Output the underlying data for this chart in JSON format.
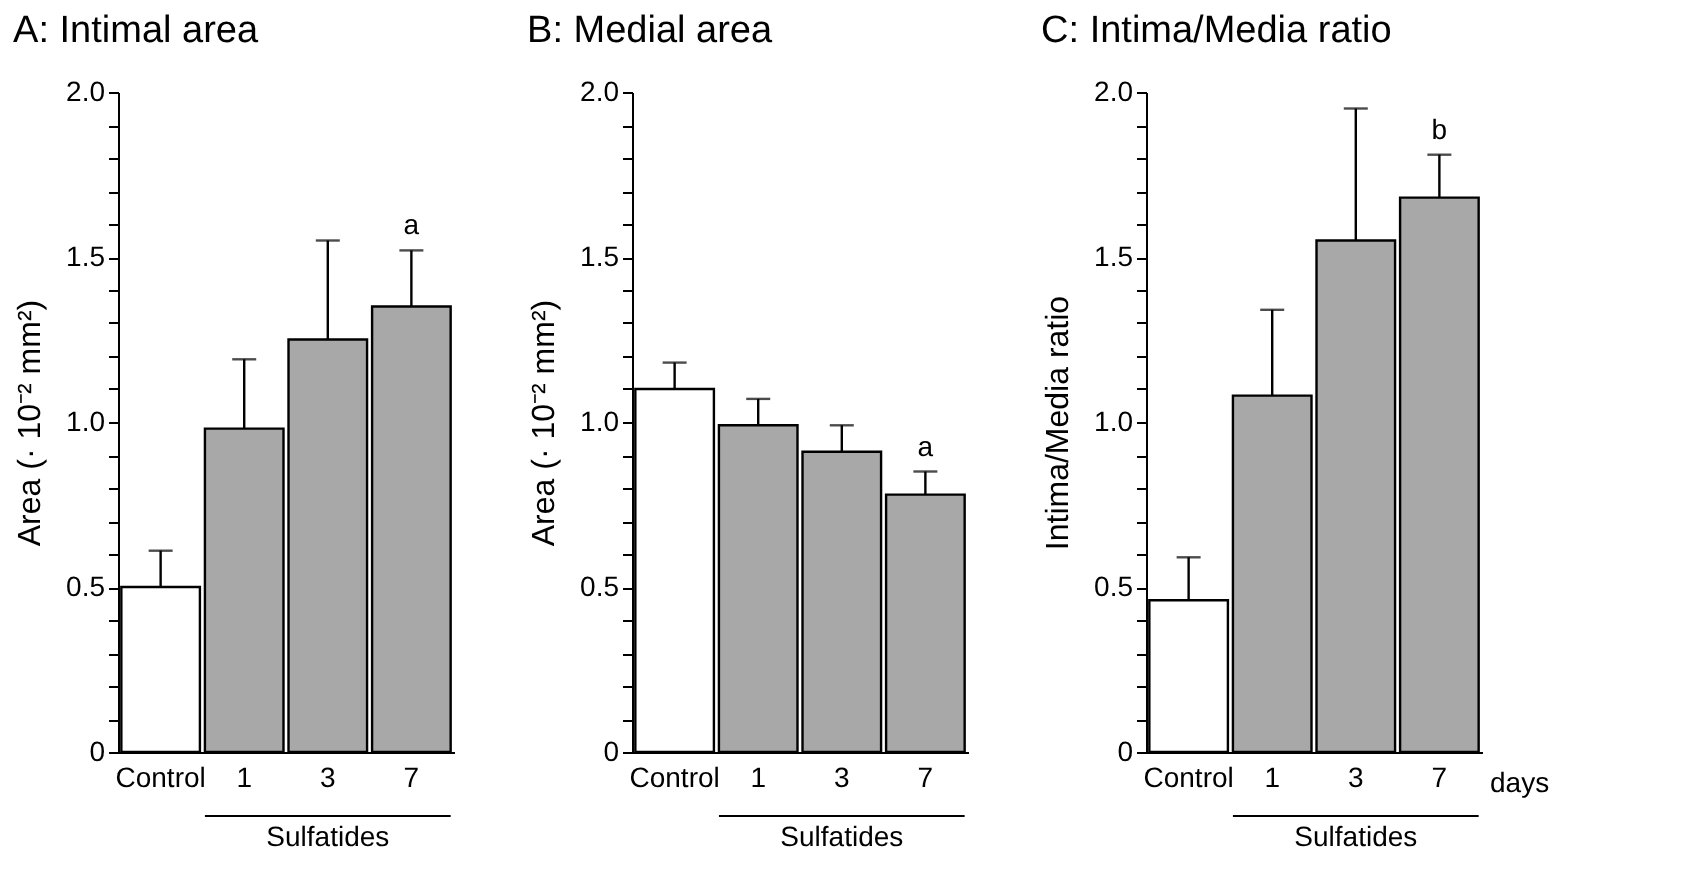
{
  "chart_data": [
    {
      "type": "bar",
      "title": "A: Intimal area",
      "ylabel": "Area (· 10⁻² mm²)",
      "xlabel": "Sulfatides",
      "categories": [
        "Control",
        "1",
        "3",
        "7"
      ],
      "values": [
        0.5,
        0.98,
        1.25,
        1.35
      ],
      "colors": [
        "#ffffff",
        "#a8a8a8",
        "#a8a8a8",
        "#a8a8a8"
      ],
      "errors": [
        [
          0.5,
          0.61
        ],
        [
          0.98,
          1.19
        ],
        [
          1.25,
          1.55
        ],
        [
          1.35,
          1.52
        ]
      ],
      "ylim": [
        0,
        2
      ],
      "yticks": [
        0,
        {
          "value": 0.1,
          "label": null
        },
        {
          "value": 0.2,
          "label": null
        },
        {
          "value": 0.3,
          "label": null
        },
        {
          "value": 0.4,
          "label": null
        },
        0.5,
        {
          "value": 0.6,
          "label": null
        },
        {
          "value": 0.7,
          "label": null
        },
        {
          "value": 0.8,
          "label": null
        },
        {
          "value": 0.9,
          "label": null
        },
        {
          "value": 1,
          "label": "1.0"
        },
        {
          "value": 1.1,
          "label": null
        },
        {
          "value": 1.2,
          "label": null
        },
        {
          "value": 1.3,
          "label": null
        },
        {
          "value": 1.4,
          "label": null
        },
        1.5,
        {
          "value": 1.6,
          "label": null
        },
        {
          "value": 1.7,
          "label": null
        },
        {
          "value": 1.8,
          "label": null
        },
        {
          "value": 1.9,
          "label": null
        },
        {
          "value": 2,
          "label": "2.0"
        }
      ],
      "grid": false,
      "annotations": [
        {
          "text": "a",
          "x": "7",
          "y": 1.52
        }
      ]
    },
    {
      "type": "bar",
      "title": "B: Medial area",
      "ylabel": "Area (· 10⁻² mm²)",
      "xlabel": "Sulfatides",
      "categories": [
        "Control",
        "1",
        "3",
        "7"
      ],
      "values": [
        1.1,
        0.99,
        0.91,
        0.78
      ],
      "colors": [
        "#ffffff",
        "#a8a8a8",
        "#a8a8a8",
        "#a8a8a8"
      ],
      "errors": [
        [
          1.1,
          1.18
        ],
        [
          0.99,
          1.07
        ],
        [
          0.91,
          0.99
        ],
        [
          0.78,
          0.85
        ]
      ],
      "ylim": [
        0,
        2
      ],
      "yticks": [
        0,
        {
          "value": 0.1,
          "label": null
        },
        {
          "value": 0.2,
          "label": null
        },
        {
          "value": 0.3,
          "label": null
        },
        {
          "value": 0.4,
          "label": null
        },
        0.5,
        {
          "value": 0.6,
          "label": null
        },
        {
          "value": 0.7,
          "label": null
        },
        {
          "value": 0.8,
          "label": null
        },
        {
          "value": 0.9,
          "label": null
        },
        {
          "value": 1,
          "label": "1.0"
        },
        {
          "value": 1.1,
          "label": null
        },
        {
          "value": 1.2,
          "label": null
        },
        {
          "value": 1.3,
          "label": null
        },
        {
          "value": 1.4,
          "label": null
        },
        1.5,
        {
          "value": 1.6,
          "label": null
        },
        {
          "value": 1.7,
          "label": null
        },
        {
          "value": 1.8,
          "label": null
        },
        {
          "value": 1.9,
          "label": null
        },
        {
          "value": 2,
          "label": "2.0"
        }
      ],
      "grid": false,
      "annotations": [
        {
          "text": "a",
          "x": "7",
          "y": 0.85
        }
      ]
    },
    {
      "type": "bar",
      "title": "C: Intima/Media ratio",
      "ylabel": "Intima/Media ratio",
      "xlabel": "Sulfatides",
      "categories": [
        "Control",
        "1",
        "3",
        "7"
      ],
      "values": [
        0.46,
        1.08,
        1.55,
        1.68
      ],
      "colors": [
        "#ffffff",
        "#a8a8a8",
        "#a8a8a8",
        "#a8a8a8"
      ],
      "errors": [
        [
          0.46,
          0.59
        ],
        [
          1.08,
          1.34
        ],
        [
          1.55,
          1.95
        ],
        [
          1.68,
          1.81
        ]
      ],
      "ylim": [
        0,
        2
      ],
      "yticks": [
        0,
        {
          "value": 0.1,
          "label": null
        },
        {
          "value": 0.2,
          "label": null
        },
        {
          "value": 0.3,
          "label": null
        },
        {
          "value": 0.4,
          "label": null
        },
        0.5,
        {
          "value": 0.6,
          "label": null
        },
        {
          "value": 0.7,
          "label": null
        },
        {
          "value": 0.8,
          "label": null
        },
        {
          "value": 0.9,
          "label": null
        },
        {
          "value": 1,
          "label": "1.0"
        },
        {
          "value": 1.1,
          "label": null
        },
        {
          "value": 1.2,
          "label": null
        },
        {
          "value": 1.3,
          "label": null
        },
        {
          "value": 1.4,
          "label": null
        },
        1.5,
        {
          "value": 1.6,
          "label": null
        },
        {
          "value": 1.7,
          "label": null
        },
        {
          "value": 1.8,
          "label": null
        },
        {
          "value": 1.9,
          "label": null
        },
        {
          "value": 2,
          "label": "2.0"
        }
      ],
      "grid": false,
      "annotations": [
        {
          "text": "b",
          "x": "7",
          "y": 1.81
        },
        "days"
      ]
    }
  ]
}
